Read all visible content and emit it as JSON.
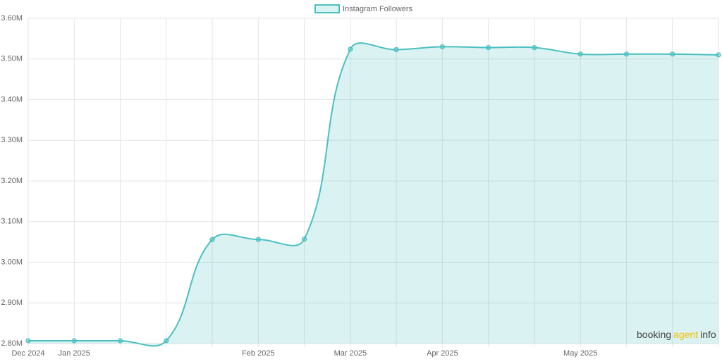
{
  "chart_data": {
    "type": "area",
    "legend_position": "top",
    "grid": true,
    "categories": [
      "Dec 2024",
      "Jan 2025",
      null,
      null,
      null,
      "Feb 2025",
      null,
      "Mar 2025",
      null,
      "Apr 2025",
      null,
      null,
      "May 2025",
      null,
      null,
      null
    ],
    "series": [
      {
        "name": "Instagram Followers",
        "color": "#4bc0c0",
        "values": [
          2807000,
          2807000,
          2807000,
          2807000,
          3056000,
          3056000,
          3057000,
          3524000,
          3523000,
          3530000,
          3528000,
          3528000,
          3512000,
          3512000,
          3512000,
          3510000
        ]
      }
    ],
    "ylim": [
      2800000,
      3600000
    ],
    "yticks": [
      {
        "value": 2800000,
        "label": "2.80M"
      },
      {
        "value": 2900000,
        "label": "2.90M"
      },
      {
        "value": 3000000,
        "label": "3.00M"
      },
      {
        "value": 3100000,
        "label": "3.10M"
      },
      {
        "value": 3200000,
        "label": "3.20M"
      },
      {
        "value": 3300000,
        "label": "3.30M"
      },
      {
        "value": 3400000,
        "label": "3.40M"
      },
      {
        "value": 3500000,
        "label": "3.50M"
      },
      {
        "value": 3600000,
        "label": "3.60M"
      }
    ],
    "watermark": [
      "booking",
      "agent",
      "info"
    ]
  }
}
